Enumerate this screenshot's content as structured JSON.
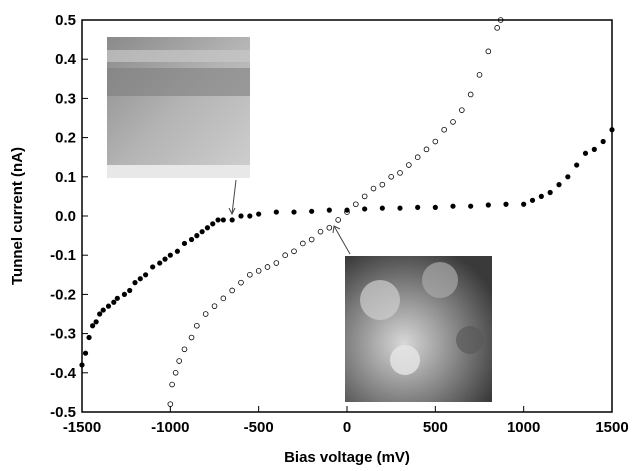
{
  "chart_data": {
    "type": "scatter",
    "xlabel": "Bias voltage (mV)",
    "ylabel": "Tunnel current (nA)",
    "xlim": [
      -1500,
      1500
    ],
    "ylim": [
      -0.5,
      0.5
    ],
    "xticks": [
      -1500,
      -1000,
      -500,
      0,
      500,
      1000,
      1500
    ],
    "yticks": [
      -0.5,
      -0.4,
      -0.3,
      -0.2,
      -0.1,
      {
        "value": 0,
        "label": "0.0"
      },
      0.1,
      0.2,
      0.3,
      0.4,
      0.5
    ],
    "series": [
      {
        "color": "#000000",
        "marker": "filled",
        "x": [
          -1500,
          -1480,
          -1460,
          -1440,
          -1420,
          -1400,
          -1380,
          -1350,
          -1320,
          -1300,
          -1260,
          -1230,
          -1200,
          -1170,
          -1140,
          -1100,
          -1060,
          -1030,
          -1000,
          -960,
          -920,
          -880,
          -850,
          -820,
          -790,
          -760,
          -730,
          -700,
          -650,
          -600,
          -550,
          -500,
          -400,
          -300,
          -200,
          -100,
          0,
          100,
          200,
          300,
          400,
          500,
          600,
          700,
          800,
          900,
          1000,
          1050,
          1100,
          1150,
          1200,
          1250,
          1300,
          1350,
          1400,
          1450,
          1500
        ],
        "values": [
          -0.38,
          -0.35,
          -0.31,
          -0.28,
          -0.27,
          -0.25,
          -0.24,
          -0.23,
          -0.22,
          -0.21,
          -0.2,
          -0.19,
          -0.17,
          -0.16,
          -0.15,
          -0.13,
          -0.12,
          -0.11,
          -0.1,
          -0.09,
          -0.07,
          -0.06,
          -0.05,
          -0.04,
          -0.03,
          -0.02,
          -0.01,
          -0.01,
          -0.01,
          0,
          0,
          0.005,
          0.01,
          0.01,
          0.012,
          0.015,
          0.015,
          0.018,
          0.02,
          0.02,
          0.022,
          0.022,
          0.025,
          0.025,
          0.028,
          0.03,
          0.03,
          0.04,
          0.05,
          0.06,
          0.08,
          0.1,
          0.13,
          0.16,
          0.17,
          0.19,
          0.22
        ]
      },
      {
        "color": "#000000",
        "marker": "open",
        "x": [
          -1000,
          -990,
          -970,
          -950,
          -920,
          -880,
          -850,
          -800,
          -750,
          -700,
          -650,
          -600,
          -550,
          -500,
          -450,
          -400,
          -350,
          -300,
          -250,
          -200,
          -150,
          -100,
          -50,
          0,
          50,
          100,
          150,
          200,
          250,
          300,
          350,
          400,
          450,
          500,
          550,
          600,
          650,
          700,
          750,
          800,
          850,
          870
        ],
        "values": [
          -0.48,
          -0.43,
          -0.4,
          -0.37,
          -0.34,
          -0.31,
          -0.28,
          -0.25,
          -0.23,
          -0.21,
          -0.19,
          -0.17,
          -0.15,
          -0.14,
          -0.13,
          -0.12,
          -0.1,
          -0.09,
          -0.07,
          -0.06,
          -0.04,
          -0.03,
          -0.01,
          0.01,
          0.03,
          0.05,
          0.07,
          0.08,
          0.1,
          0.11,
          0.13,
          0.15,
          0.17,
          0.19,
          0.22,
          0.24,
          0.27,
          0.31,
          0.36,
          0.42,
          0.48,
          0.5
        ]
      }
    ]
  }
}
